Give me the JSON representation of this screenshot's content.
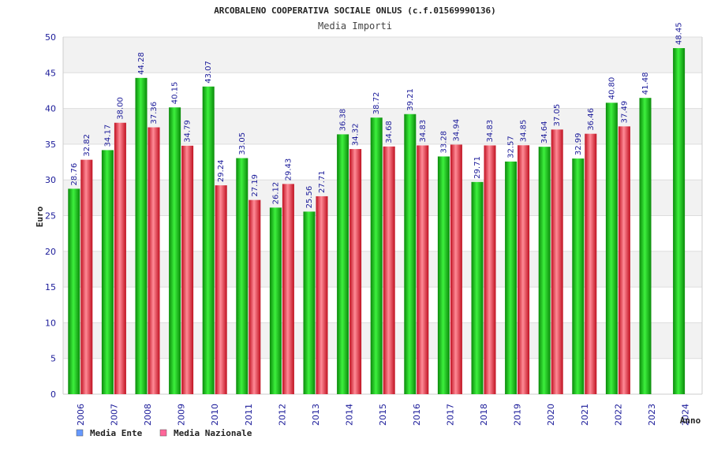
{
  "chart_data": {
    "type": "bar",
    "title": "ARCOBALENO COOPERATIVA SOCIALE ONLUS (c.f.01569990136)",
    "subtitle": "Media Importi",
    "ylabel": "Euro",
    "xlabel": "Anno",
    "ylim": [
      0,
      50
    ],
    "yticks": [
      0,
      5,
      10,
      15,
      20,
      25,
      30,
      35,
      40,
      45,
      50
    ],
    "grid": true,
    "legend_position": "bottom-left",
    "categories": [
      "2006",
      "2007",
      "2008",
      "2009",
      "2010",
      "2011",
      "2012",
      "2013",
      "2014",
      "2015",
      "2016",
      "2017",
      "2018",
      "2019",
      "2020",
      "2021",
      "2022",
      "2023",
      "2024"
    ],
    "series": [
      {
        "name": "Media Ente",
        "legend_color": "#6699ff",
        "color": "#11cc11",
        "values": [
          28.76,
          34.17,
          44.28,
          40.15,
          43.07,
          33.05,
          26.12,
          25.56,
          36.38,
          38.72,
          39.21,
          33.28,
          29.71,
          32.57,
          34.64,
          32.99,
          40.8,
          41.48,
          48.45
        ],
        "labels": [
          "28.76",
          "34.17",
          "44.28",
          "40.15",
          "43.07",
          "33.05",
          "26.12",
          "25.56",
          "36.38",
          "38.72",
          "39.21",
          "33.28",
          "29.71",
          "32.57",
          "34.64",
          "32.99",
          "40.80",
          "41.48",
          "48.45"
        ]
      },
      {
        "name": "Media Nazionale",
        "legend_color": "#ff6699",
        "color": "#ee2233",
        "values": [
          32.82,
          38.0,
          37.36,
          34.79,
          29.24,
          27.19,
          29.43,
          27.71,
          34.32,
          34.68,
          34.83,
          34.94,
          34.83,
          34.85,
          37.05,
          36.46,
          37.49,
          null,
          null
        ],
        "labels": [
          "32.82",
          "38.00",
          "37.36",
          "34.79",
          "29.24",
          "27.19",
          "29.43",
          "27.71",
          "34.32",
          "34.68",
          "34.83",
          "34.94",
          "34.83",
          "34.85",
          "37.05",
          "36.46",
          "37.49",
          null,
          null
        ]
      }
    ]
  }
}
